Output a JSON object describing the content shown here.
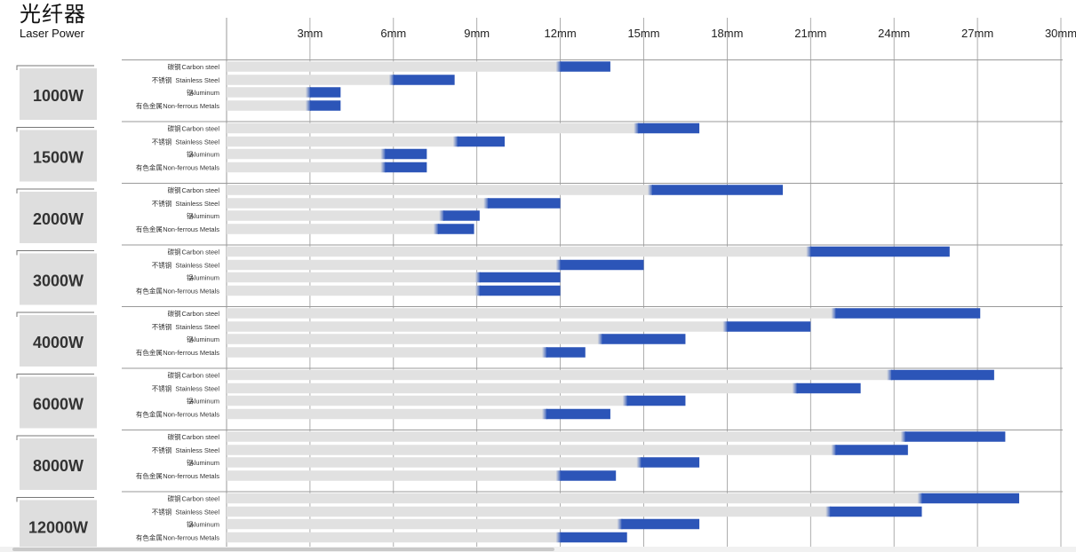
{
  "header": {
    "title_cn": "光纤器",
    "title_en": "Laser Power"
  },
  "colors": {
    "gray_bar": "#e1e1e1",
    "blue_bar": "#2c55b8",
    "label_box": "#dedede",
    "grid": "#9a9a9a"
  },
  "chart_data": {
    "type": "bar",
    "orientation": "horizontal",
    "title": "光纤器",
    "subtitle": "Laser Power",
    "x_unit": "mm",
    "xlim": [
      0,
      30
    ],
    "x_ticks": [
      {
        "value": 3,
        "label": "3mm"
      },
      {
        "value": 6,
        "label": "6mm"
      },
      {
        "value": 9,
        "label": "9mm"
      },
      {
        "value": 12,
        "label": "12mm"
      },
      {
        "value": 15,
        "label": "15mm"
      },
      {
        "value": 18,
        "label": "18mm"
      },
      {
        "value": 21,
        "label": "21mm"
      },
      {
        "value": 24,
        "label": "24mm"
      },
      {
        "value": 27,
        "label": "27mm"
      },
      {
        "value": 30,
        "label": "30mm"
      }
    ],
    "grid": true,
    "materials": [
      {
        "cn": "碳钢",
        "en": "Carbon steel"
      },
      {
        "cn": "不锈钢",
        "en": "Stainless Steel"
      },
      {
        "cn": "铝",
        "en": "Aluminum"
      },
      {
        "cn": "有色金属",
        "en": "Non-ferrous Metals"
      }
    ],
    "groups": [
      {
        "power": "1000W",
        "bars": [
          {
            "gray": 12,
            "max": 13.8
          },
          {
            "gray": 6,
            "max": 8.2
          },
          {
            "gray": 3,
            "max": 4.1
          },
          {
            "gray": 3,
            "max": 4.1
          }
        ]
      },
      {
        "power": "1500W",
        "bars": [
          {
            "gray": 14.8,
            "max": 17
          },
          {
            "gray": 8.3,
            "max": 10
          },
          {
            "gray": 5.7,
            "max": 7.2
          },
          {
            "gray": 5.7,
            "max": 7.2
          }
        ]
      },
      {
        "power": "2000W",
        "bars": [
          {
            "gray": 15.3,
            "max": 20
          },
          {
            "gray": 9.4,
            "max": 12
          },
          {
            "gray": 7.8,
            "max": 9.1
          },
          {
            "gray": 7.6,
            "max": 8.9
          }
        ]
      },
      {
        "power": "3000W",
        "bars": [
          {
            "gray": 21,
            "max": 26
          },
          {
            "gray": 12,
            "max": 15
          },
          {
            "gray": 9.1,
            "max": 12
          },
          {
            "gray": 9.1,
            "max": 12
          }
        ]
      },
      {
        "power": "4000W",
        "bars": [
          {
            "gray": 21.9,
            "max": 27.1
          },
          {
            "gray": 18,
            "max": 21
          },
          {
            "gray": 13.5,
            "max": 16.5
          },
          {
            "gray": 11.5,
            "max": 12.9
          }
        ]
      },
      {
        "power": "6000W",
        "bars": [
          {
            "gray": 23.9,
            "max": 27.6
          },
          {
            "gray": 20.5,
            "max": 22.8
          },
          {
            "gray": 14.4,
            "max": 16.5
          },
          {
            "gray": 11.5,
            "max": 13.8
          }
        ]
      },
      {
        "power": "8000W",
        "bars": [
          {
            "gray": 24.4,
            "max": 28
          },
          {
            "gray": 21.9,
            "max": 24.5
          },
          {
            "gray": 14.9,
            "max": 17
          },
          {
            "gray": 12,
            "max": 14
          }
        ]
      },
      {
        "power": "12000W",
        "bars": [
          {
            "gray": 25,
            "max": 28.5
          },
          {
            "gray": 21.7,
            "max": 25
          },
          {
            "gray": 14.2,
            "max": 17
          },
          {
            "gray": 12,
            "max": 14.4
          }
        ]
      }
    ]
  }
}
